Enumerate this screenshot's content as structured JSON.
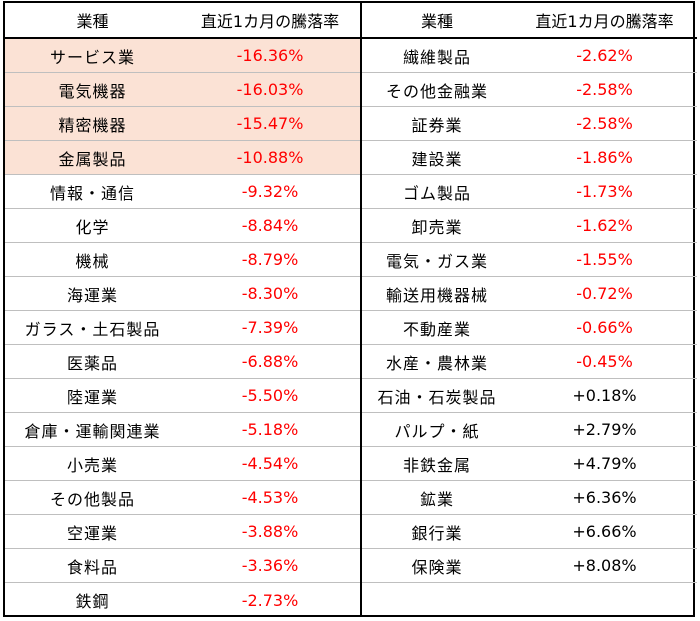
{
  "header": {
    "industry": "業種",
    "change": "直近1カ月の騰落率"
  },
  "colors": {
    "negative": "#ff0000",
    "positive": "#000000",
    "highlight": "#fbe2d5"
  },
  "left_rows": [
    {
      "name": "サービス業",
      "value": "-16.36%",
      "highlight": true
    },
    {
      "name": "電気機器",
      "value": "-16.03%",
      "highlight": true
    },
    {
      "name": "精密機器",
      "value": "-15.47%",
      "highlight": true
    },
    {
      "name": "金属製品",
      "value": "-10.88%",
      "highlight": true
    },
    {
      "name": "情報・通信",
      "value": "-9.32%"
    },
    {
      "name": "化学",
      "value": "-8.84%"
    },
    {
      "name": "機械",
      "value": "-8.79%"
    },
    {
      "name": "海運業",
      "value": "-8.30%"
    },
    {
      "name": "ガラス・土石製品",
      "value": "-7.39%"
    },
    {
      "name": "医薬品",
      "value": "-6.88%"
    },
    {
      "name": "陸運業",
      "value": "-5.50%"
    },
    {
      "name": "倉庫・運輸関連業",
      "value": "-5.18%"
    },
    {
      "name": "小売業",
      "value": "-4.54%"
    },
    {
      "name": "その他製品",
      "value": "-4.53%"
    },
    {
      "name": "空運業",
      "value": "-3.88%"
    },
    {
      "name": "食料品",
      "value": "-3.36%"
    },
    {
      "name": "鉄鋼",
      "value": "-2.73%"
    }
  ],
  "right_rows": [
    {
      "name": "繊維製品",
      "value": "-2.62%"
    },
    {
      "name": "その他金融業",
      "value": "-2.58%"
    },
    {
      "name": "証券業",
      "value": "-2.58%"
    },
    {
      "name": "建設業",
      "value": "-1.86%"
    },
    {
      "name": "ゴム製品",
      "value": "-1.73%"
    },
    {
      "name": "卸売業",
      "value": "-1.62%"
    },
    {
      "name": "電気・ガス業",
      "value": "-1.55%"
    },
    {
      "name": "輸送用機器械",
      "value": "-0.72%"
    },
    {
      "name": "不動産業",
      "value": "-0.66%"
    },
    {
      "name": "水産・農林業",
      "value": "-0.45%"
    },
    {
      "name": "石油・石炭製品",
      "value": "+0.18%"
    },
    {
      "name": "パルプ・紙",
      "value": "+2.79%"
    },
    {
      "name": "非鉄金属",
      "value": "+4.79%"
    },
    {
      "name": "鉱業",
      "value": "+6.36%"
    },
    {
      "name": "銀行業",
      "value": "+6.66%"
    },
    {
      "name": "保険業",
      "value": "+8.08%"
    }
  ]
}
